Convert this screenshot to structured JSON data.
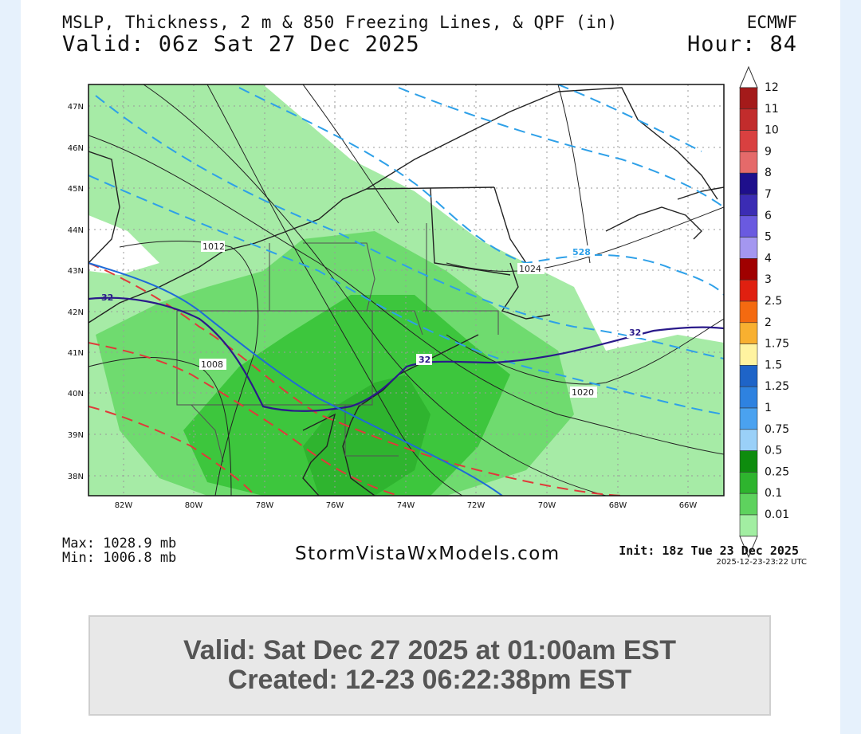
{
  "header": {
    "title": "MSLP, Thickness, 2 m & 850 Freezing Lines, & QPF (in)",
    "valid": "Valid: 06z Sat 27 Dec 2025",
    "model": "ECMWF",
    "hour": "Hour: 84"
  },
  "map": {
    "lat_labels": [
      "47N",
      "46N",
      "45N",
      "44N",
      "43N",
      "42N",
      "41N",
      "40N",
      "39N",
      "38N"
    ],
    "lon_labels": [
      "82W",
      "80W",
      "78W",
      "76W",
      "74W",
      "72W",
      "70W",
      "68W",
      "66W"
    ],
    "isobar_labels": [
      "1012",
      "1008",
      "1024",
      "1020"
    ],
    "thickness_label": "528",
    "freezing_labels": [
      "32",
      "32",
      "32"
    ]
  },
  "colorbar": {
    "labels": [
      "12",
      "11",
      "10",
      "9",
      "8",
      "7",
      "6",
      "5",
      "4",
      "3",
      "2.5",
      "2",
      "1.75",
      "1.5",
      "1.25",
      "1",
      "0.75",
      "0.5",
      "0.25",
      "0.1",
      "0.01"
    ],
    "colors": [
      "#a41a1a",
      "#c22c2c",
      "#d94040",
      "#e56a6a",
      "#1e0f8c",
      "#3b2cb4",
      "#6a5ae0",
      "#a497f0",
      "#a00000",
      "#e02010",
      "#f46a10",
      "#f8b030",
      "#fff3a0",
      "#1e64c8",
      "#2e82e0",
      "#4aa2f0",
      "#9ad0f8",
      "#0e8c0e",
      "#2eb42e",
      "#5ed25e",
      "#a2eea2"
    ]
  },
  "footer": {
    "max": "Max: 1028.9 mb",
    "min": "Min: 1006.8 mb",
    "site": "StormVistaWxModels.com",
    "init": "Init: 18z Tue 23 Dec 2025",
    "stamp": "2025-12-23-23:22 UTC"
  },
  "info": {
    "line1": "Valid: Sat Dec 27 2025 at 01:00am EST",
    "line2": "Created: 12-23 06:22:38pm EST"
  }
}
